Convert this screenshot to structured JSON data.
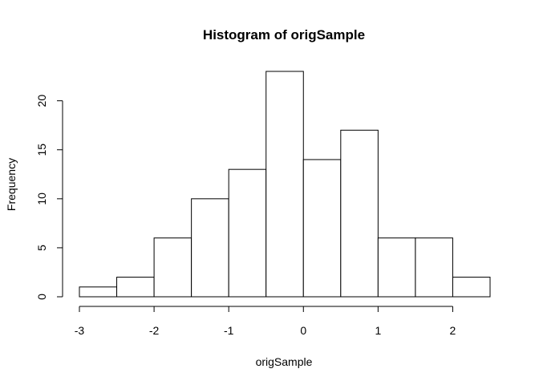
{
  "chart_data": {
    "type": "bar",
    "title": "Histogram of origSample",
    "xlabel": "origSample",
    "ylabel": "Frequency",
    "bins": [
      {
        "from": -3.0,
        "to": -2.5,
        "count": 1
      },
      {
        "from": -2.5,
        "to": -2.0,
        "count": 2
      },
      {
        "from": -2.0,
        "to": -1.5,
        "count": 6
      },
      {
        "from": -1.5,
        "to": -1.0,
        "count": 10
      },
      {
        "from": -1.0,
        "to": -0.5,
        "count": 13
      },
      {
        "from": -0.5,
        "to": 0.0,
        "count": 23
      },
      {
        "from": 0.0,
        "to": 0.5,
        "count": 14
      },
      {
        "from": 0.5,
        "to": 1.0,
        "count": 17
      },
      {
        "from": 1.0,
        "to": 1.5,
        "count": 6
      },
      {
        "from": 1.5,
        "to": 2.0,
        "count": 6
      },
      {
        "from": 2.0,
        "to": 2.5,
        "count": 2
      }
    ],
    "xlim": [
      -3,
      2.5
    ],
    "ylim": [
      0,
      23
    ],
    "xticks": [
      -3,
      -2,
      -1,
      0,
      1,
      2
    ],
    "xtick_labels": [
      "-3",
      "-2",
      "-1",
      "0",
      "1",
      "2"
    ],
    "yticks": [
      0,
      5,
      10,
      15,
      20
    ],
    "ytick_labels": [
      "0",
      "5",
      "10",
      "15",
      "20"
    ],
    "grid": false,
    "colors": {
      "bar_fill": "#ffffff",
      "bar_stroke": "#000000"
    }
  }
}
